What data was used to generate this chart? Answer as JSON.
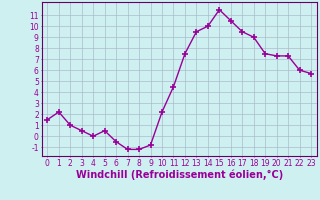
{
  "x": [
    0,
    1,
    2,
    3,
    4,
    5,
    6,
    7,
    8,
    9,
    10,
    11,
    12,
    13,
    14,
    15,
    16,
    17,
    18,
    19,
    20,
    21,
    22,
    23
  ],
  "y": [
    1.5,
    2.2,
    1.0,
    0.5,
    0.0,
    0.5,
    -0.5,
    -1.2,
    -1.2,
    -0.8,
    2.2,
    4.5,
    7.5,
    9.5,
    10.0,
    11.5,
    10.5,
    9.5,
    9.0,
    7.5,
    7.3,
    7.3,
    6.0,
    5.7
  ],
  "line_color": "#990099",
  "marker": "+",
  "marker_size": 4,
  "bg_color": "#cff0f0",
  "grid_color": "#aabbcc",
  "xlabel": "Windchill (Refroidissement éolien,°C)",
  "xlabel_fontsize": 7,
  "ylabel_ticks": [
    -1,
    0,
    1,
    2,
    3,
    4,
    5,
    6,
    7,
    8,
    9,
    10,
    11
  ],
  "xlim": [
    -0.5,
    23.5
  ],
  "ylim": [
    -1.8,
    12.2
  ],
  "xticks": [
    0,
    1,
    2,
    3,
    4,
    5,
    6,
    7,
    8,
    9,
    10,
    11,
    12,
    13,
    14,
    15,
    16,
    17,
    18,
    19,
    20,
    21,
    22,
    23
  ],
  "tick_fontsize": 5.5,
  "spine_color": "#660066"
}
